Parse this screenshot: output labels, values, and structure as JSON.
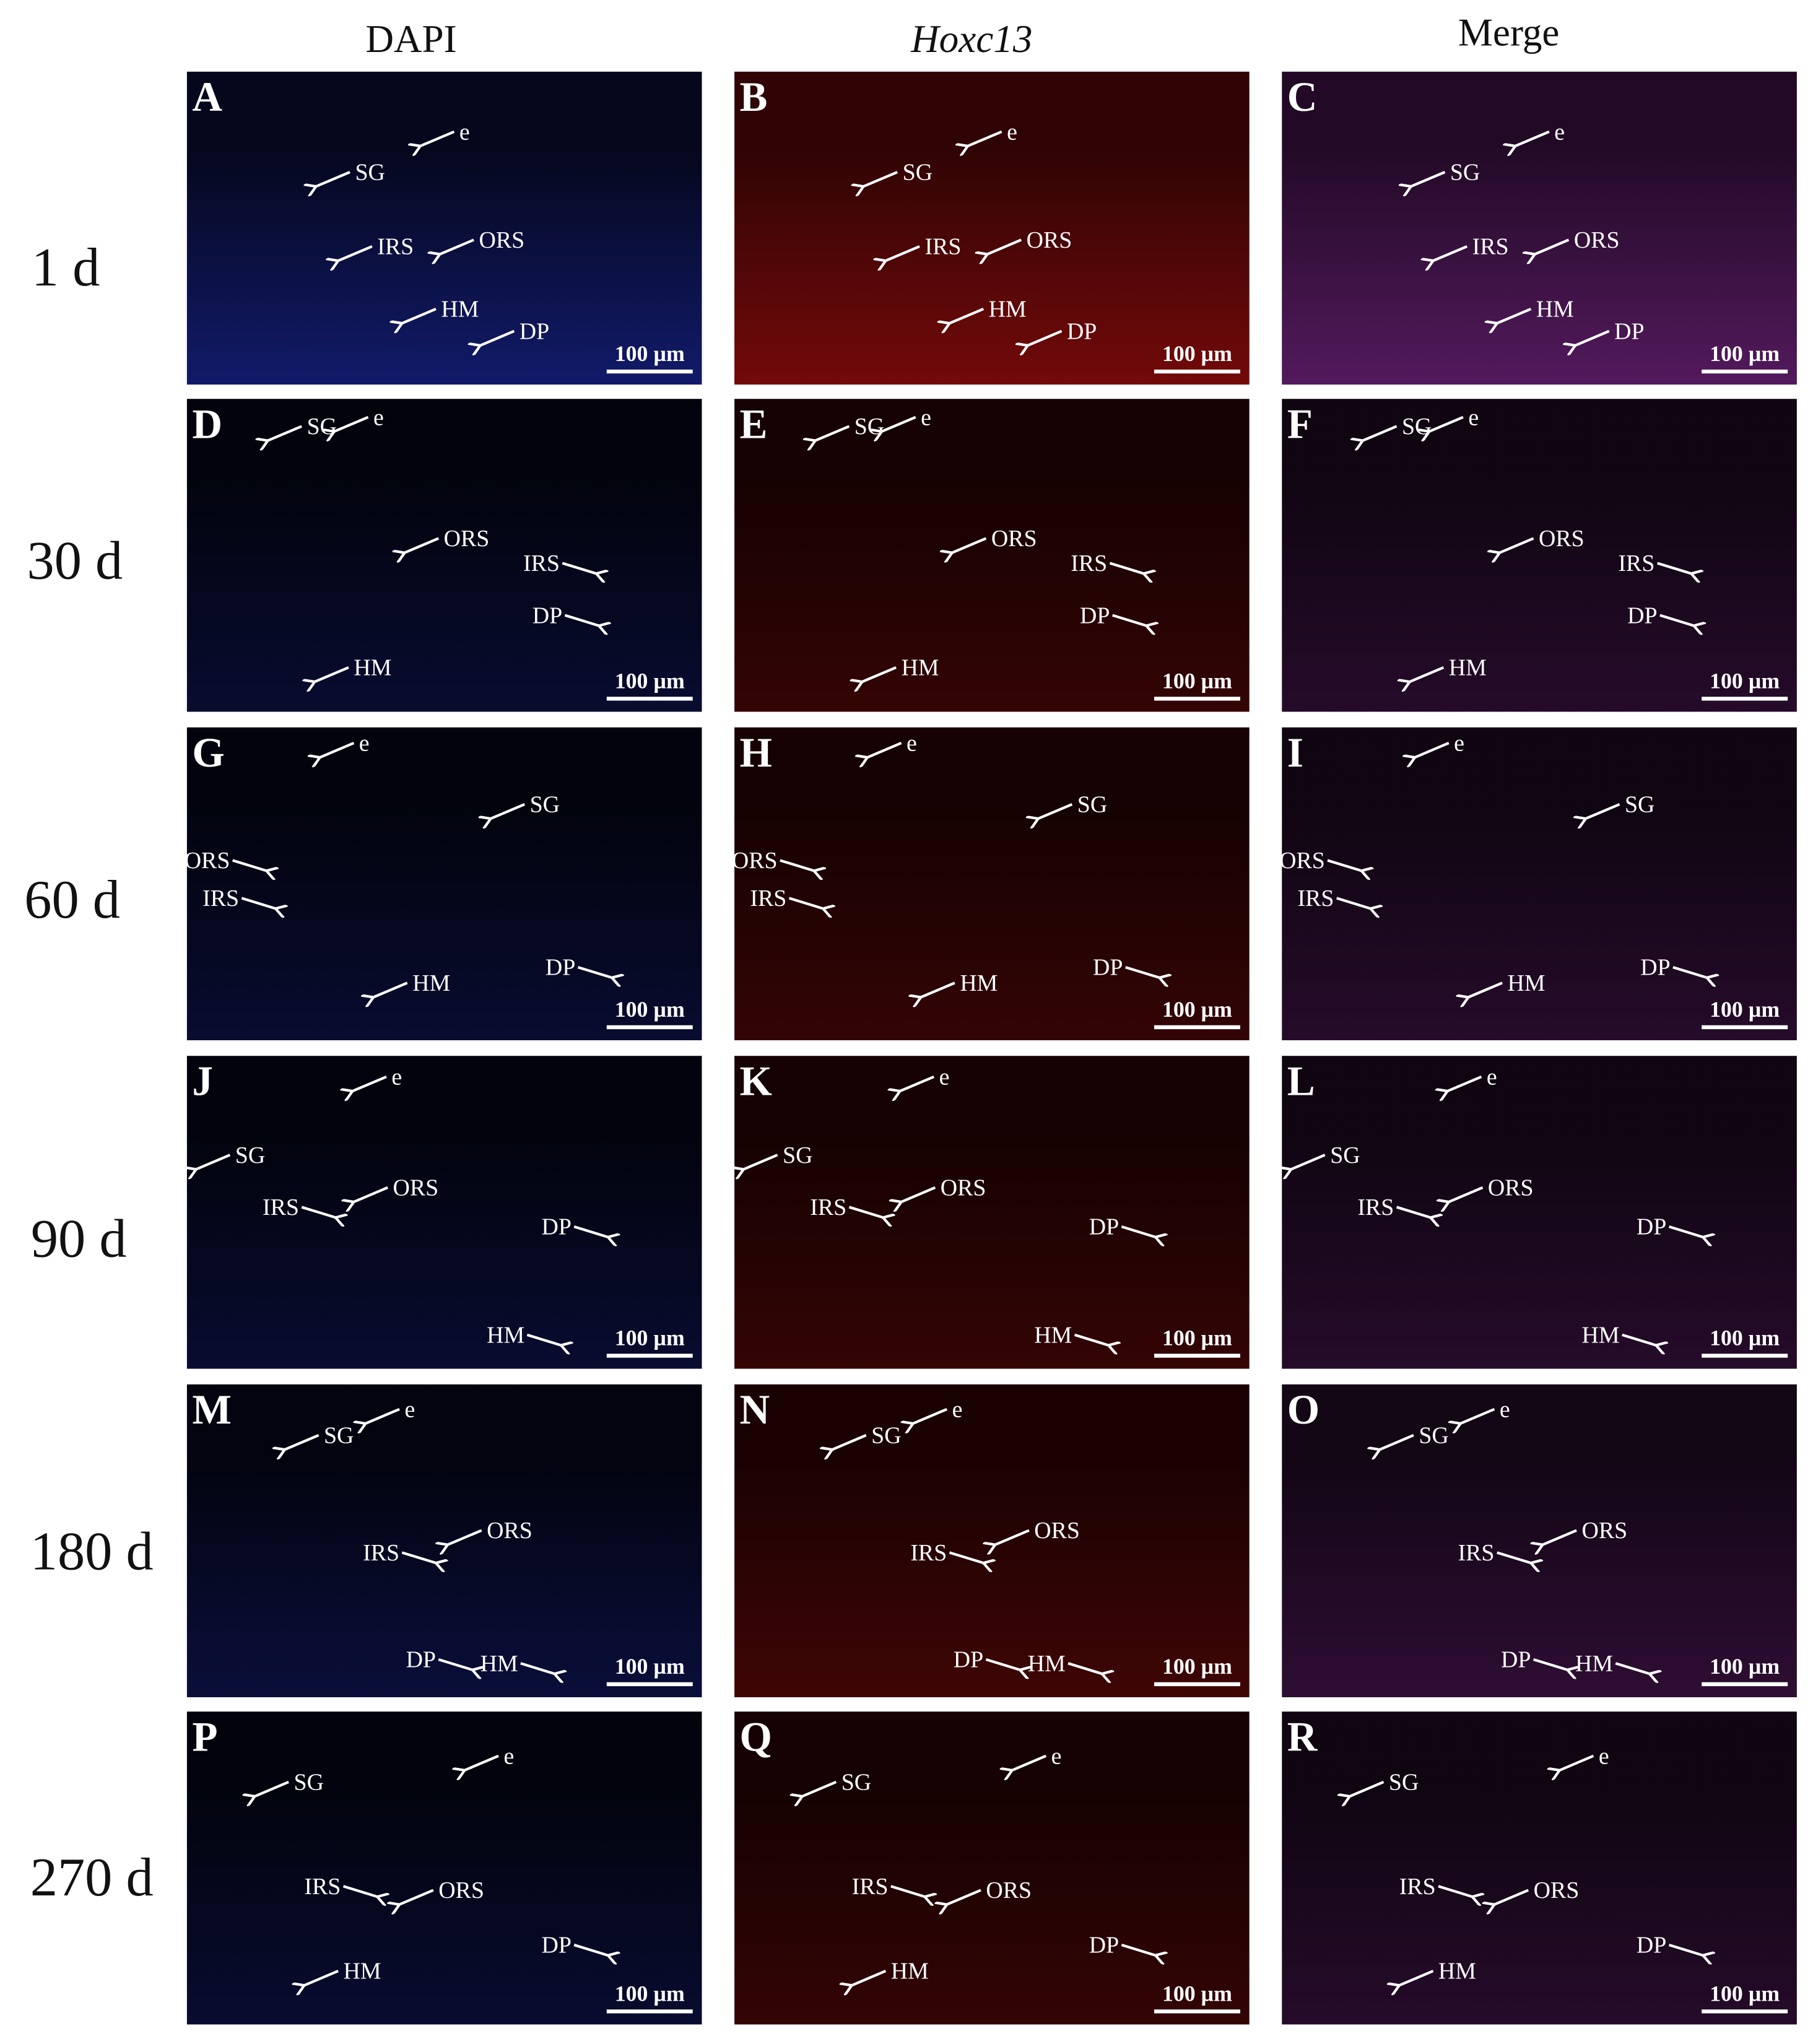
{
  "column_headers": [
    "DAPI",
    "Hoxc13",
    "Merge"
  ],
  "rows": [
    {
      "label": "1 d",
      "panels": [
        {
          "letter": "A",
          "annotations": [
            "e",
            "SG",
            "IRS",
            "ORS",
            "HM",
            "DP"
          ],
          "scale_bar": "100 µm"
        },
        {
          "letter": "B",
          "annotations": [
            "e",
            "SG",
            "IRS",
            "ORS",
            "HM",
            "DP"
          ],
          "scale_bar": "100 µm"
        },
        {
          "letter": "C",
          "annotations": [
            "e",
            "SG",
            "IRS",
            "ORS",
            "HM",
            "DP"
          ],
          "scale_bar": "100 µm"
        }
      ]
    },
    {
      "label": "30 d",
      "panels": [
        {
          "letter": "D",
          "annotations": [
            "SG",
            "e",
            "ORS",
            "IRS",
            "DP",
            "HM"
          ],
          "scale_bar": "100 µm"
        },
        {
          "letter": "E",
          "annotations": [
            "SG",
            "e",
            "ORS",
            "IRS",
            "DP",
            "HM"
          ],
          "scale_bar": "100 µm"
        },
        {
          "letter": "F",
          "annotations": [
            "SG",
            "e",
            "ORS",
            "IRS",
            "DP",
            "HM"
          ],
          "scale_bar": "100 µm"
        }
      ]
    },
    {
      "label": "60 d",
      "panels": [
        {
          "letter": "G",
          "annotations": [
            "e",
            "SG",
            "ORS",
            "IRS",
            "HM",
            "DP"
          ],
          "scale_bar": "100 µm"
        },
        {
          "letter": "H",
          "annotations": [
            "e",
            "SG",
            "ORS",
            "IRS",
            "HM",
            "DP"
          ],
          "scale_bar": "100 µm"
        },
        {
          "letter": "I",
          "annotations": [
            "e",
            "SG",
            "ORS",
            "IRS",
            "HM",
            "DP"
          ],
          "scale_bar": "100 µm"
        }
      ]
    },
    {
      "label": "90 d",
      "panels": [
        {
          "letter": "J",
          "annotations": [
            "e",
            "SG",
            "IRS",
            "ORS",
            "DP",
            "HM"
          ],
          "scale_bar": "100 µm"
        },
        {
          "letter": "K",
          "annotations": [
            "e",
            "SG",
            "IRS",
            "ORS",
            "DP",
            "HM"
          ],
          "scale_bar": "100 µm"
        },
        {
          "letter": "L",
          "annotations": [
            "e",
            "SG",
            "IRS",
            "ORS",
            "DP",
            "HM"
          ],
          "scale_bar": "100 µm"
        }
      ]
    },
    {
      "label": "180 d",
      "panels": [
        {
          "letter": "M",
          "annotations": [
            "SG",
            "e",
            "ORS",
            "IRS",
            "DP",
            "HM"
          ],
          "scale_bar": "100 µm"
        },
        {
          "letter": "N",
          "annotations": [
            "SG",
            "e",
            "ORS",
            "IRS",
            "DP",
            "HM"
          ],
          "scale_bar": "100 µm"
        },
        {
          "letter": "O",
          "annotations": [
            "SG",
            "e",
            "ORS",
            "IRS",
            "DP",
            "HM"
          ],
          "scale_bar": "100 µm"
        }
      ]
    },
    {
      "label": "270 d",
      "panels": [
        {
          "letter": "P",
          "annotations": [
            "SG",
            "e",
            "IRS",
            "ORS",
            "HM",
            "DP"
          ],
          "scale_bar": "100 µm"
        },
        {
          "letter": "Q",
          "annotations": [
            "SG",
            "e",
            "IRS",
            "ORS",
            "HM",
            "DP"
          ],
          "scale_bar": "100 µm"
        },
        {
          "letter": "R",
          "annotations": [
            "SG",
            "e",
            "IRS",
            "ORS",
            "HM",
            "DP"
          ],
          "scale_bar": "100 µm"
        }
      ]
    }
  ]
}
